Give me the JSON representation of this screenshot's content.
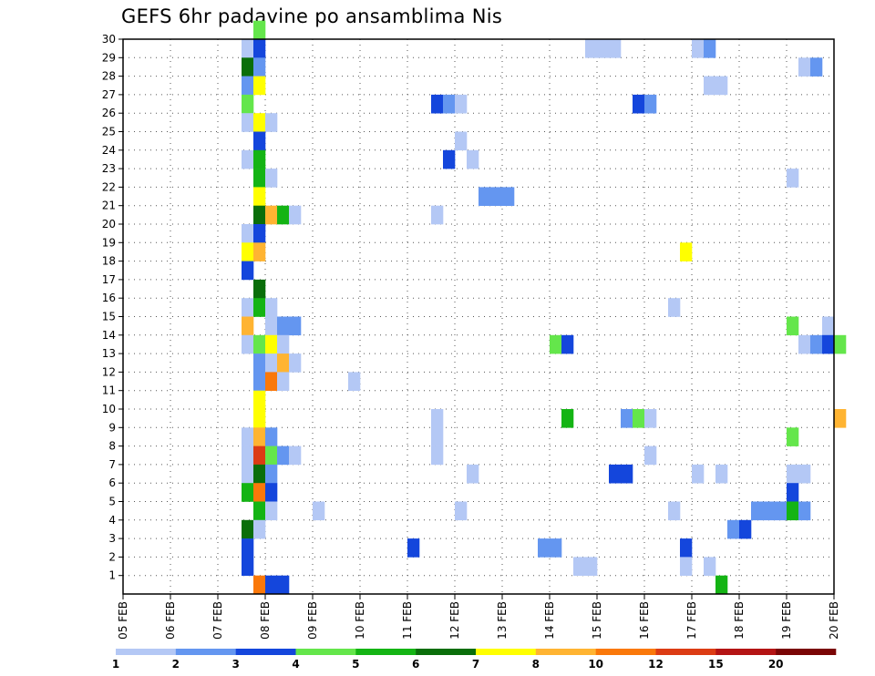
{
  "chart_data": {
    "type": "heatmap",
    "title": "GEFS 6hr padavine po ansamblima Nis",
    "xlabel": "",
    "ylabel": "",
    "x_tick_labels": [
      "05 FEB",
      "06 FEB",
      "07 FEB",
      "08 FEB",
      "09 FEB",
      "10 FEB",
      "11 FEB",
      "12 FEB",
      "13 FEB",
      "14 FEB",
      "15 FEB",
      "16 FEB",
      "17 FEB",
      "18 FEB",
      "19 FEB",
      "20 FEB"
    ],
    "x_unit": "6-hour step from 05 FEB 00z",
    "xlim": [
      0,
      60
    ],
    "y_tick_labels": [
      "1",
      "2",
      "3",
      "4",
      "5",
      "6",
      "7",
      "8",
      "9",
      "10",
      "11",
      "12",
      "13",
      "14",
      "15",
      "16",
      "17",
      "18",
      "19",
      "20",
      "21",
      "22",
      "23",
      "24",
      "25",
      "26",
      "27",
      "28",
      "29",
      "30"
    ],
    "ylim": [
      0,
      30
    ],
    "grid": true,
    "legend": {
      "placement": "bottom",
      "colors": [
        "#b4c8f5",
        "#6496f0",
        "#1446dc",
        "#64e64b",
        "#14b414",
        "#0a6e0a",
        "#ffff00",
        "#ffb432",
        "#fa780a",
        "#dc3c14",
        "#b41414",
        "#7a0505"
      ],
      "labels": [
        "1",
        "2",
        "3",
        "4",
        "5",
        "6",
        "7",
        "8",
        "10",
        "12",
        "15",
        "20"
      ]
    },
    "cells": [
      [
        10,
        29,
        1
      ],
      [
        11,
        29,
        3
      ],
      [
        11,
        30,
        4
      ],
      [
        39,
        29,
        1
      ],
      [
        40,
        29,
        1
      ],
      [
        41,
        29,
        1
      ],
      [
        48,
        29,
        1
      ],
      [
        49,
        29,
        2
      ],
      [
        10,
        28,
        6
      ],
      [
        11,
        28,
        2
      ],
      [
        57,
        28,
        1
      ],
      [
        58,
        28,
        2
      ],
      [
        10,
        27,
        2
      ],
      [
        11,
        27,
        7
      ],
      [
        49,
        27,
        1
      ],
      [
        50,
        27,
        1
      ],
      [
        10,
        26,
        4
      ],
      [
        26,
        26,
        3
      ],
      [
        27,
        26,
        2
      ],
      [
        28,
        26,
        1
      ],
      [
        43,
        26,
        3
      ],
      [
        44,
        26,
        2
      ],
      [
        10,
        25,
        1
      ],
      [
        11,
        25,
        7
      ],
      [
        12,
        25,
        1
      ],
      [
        11,
        24,
        3
      ],
      [
        28,
        24,
        1
      ],
      [
        10,
        23,
        1
      ],
      [
        11,
        23,
        5
      ],
      [
        27,
        23,
        3
      ],
      [
        29,
        23,
        1
      ],
      [
        11,
        22,
        5
      ],
      [
        12,
        22,
        1
      ],
      [
        56,
        22,
        1
      ],
      [
        11,
        21,
        7
      ],
      [
        30,
        21,
        2
      ],
      [
        31,
        21,
        2
      ],
      [
        32,
        21,
        2
      ],
      [
        11,
        20,
        6
      ],
      [
        12,
        20,
        8
      ],
      [
        13,
        20,
        5
      ],
      [
        14,
        20,
        1
      ],
      [
        26,
        20,
        1
      ],
      [
        10,
        19,
        1
      ],
      [
        11,
        19,
        3
      ],
      [
        10,
        18,
        7
      ],
      [
        11,
        18,
        8
      ],
      [
        47,
        18,
        7
      ],
      [
        10,
        17,
        3
      ],
      [
        11,
        16,
        6
      ],
      [
        10,
        15,
        1
      ],
      [
        11,
        15,
        5
      ],
      [
        12,
        15,
        1
      ],
      [
        46,
        15,
        1
      ],
      [
        10,
        14,
        8
      ],
      [
        12,
        14,
        1
      ],
      [
        13,
        14,
        2
      ],
      [
        14,
        14,
        2
      ],
      [
        56,
        14,
        4
      ],
      [
        59,
        14,
        1
      ],
      [
        10,
        13,
        1
      ],
      [
        11,
        13,
        4
      ],
      [
        12,
        13,
        7
      ],
      [
        13,
        13,
        1
      ],
      [
        36,
        13,
        4
      ],
      [
        37,
        13,
        3
      ],
      [
        57,
        13,
        1
      ],
      [
        58,
        13,
        2
      ],
      [
        59,
        13,
        3
      ],
      [
        60,
        13,
        4
      ],
      [
        11,
        12,
        2
      ],
      [
        12,
        12,
        1
      ],
      [
        13,
        12,
        8
      ],
      [
        14,
        12,
        1
      ],
      [
        11,
        11,
        2
      ],
      [
        12,
        11,
        9
      ],
      [
        13,
        11,
        1
      ],
      [
        19,
        11,
        1
      ],
      [
        11,
        10,
        7
      ],
      [
        11,
        9,
        7
      ],
      [
        26,
        9,
        1
      ],
      [
        37,
        9,
        5
      ],
      [
        42,
        9,
        2
      ],
      [
        43,
        9,
        4
      ],
      [
        44,
        9,
        1
      ],
      [
        60,
        9,
        8
      ],
      [
        10,
        8,
        1
      ],
      [
        11,
        8,
        8
      ],
      [
        12,
        8,
        2
      ],
      [
        26,
        8,
        1
      ],
      [
        56,
        8,
        4
      ],
      [
        10,
        7,
        1
      ],
      [
        11,
        7,
        10
      ],
      [
        12,
        7,
        4
      ],
      [
        13,
        7,
        2
      ],
      [
        14,
        7,
        1
      ],
      [
        26,
        7,
        1
      ],
      [
        44,
        7,
        1
      ],
      [
        10,
        6,
        1
      ],
      [
        11,
        6,
        6
      ],
      [
        12,
        6,
        2
      ],
      [
        29,
        6,
        1
      ],
      [
        41,
        6,
        3
      ],
      [
        42,
        6,
        3
      ],
      [
        48,
        6,
        1
      ],
      [
        50,
        6,
        1
      ],
      [
        56,
        6,
        1
      ],
      [
        57,
        6,
        1
      ],
      [
        10,
        5,
        5
      ],
      [
        11,
        5,
        9
      ],
      [
        12,
        5,
        3
      ],
      [
        56,
        5,
        3
      ],
      [
        11,
        4,
        5
      ],
      [
        12,
        4,
        1
      ],
      [
        16,
        4,
        1
      ],
      [
        28,
        4,
        1
      ],
      [
        46,
        4,
        1
      ],
      [
        53,
        4,
        2
      ],
      [
        54,
        4,
        2
      ],
      [
        55,
        4,
        2
      ],
      [
        56,
        4,
        5
      ],
      [
        57,
        4,
        2
      ],
      [
        10,
        3,
        6
      ],
      [
        11,
        3,
        1
      ],
      [
        51,
        3,
        2
      ],
      [
        52,
        3,
        3
      ],
      [
        10,
        2,
        3
      ],
      [
        24,
        2,
        3
      ],
      [
        35,
        2,
        2
      ],
      [
        36,
        2,
        2
      ],
      [
        47,
        2,
        3
      ],
      [
        10,
        1,
        3
      ],
      [
        38,
        1,
        1
      ],
      [
        39,
        1,
        1
      ],
      [
        47,
        1,
        1
      ],
      [
        49,
        1,
        1
      ],
      [
        11,
        0,
        9
      ],
      [
        12,
        0,
        3
      ],
      [
        13,
        0,
        3
      ],
      [
        50,
        0,
        5
      ]
    ]
  }
}
